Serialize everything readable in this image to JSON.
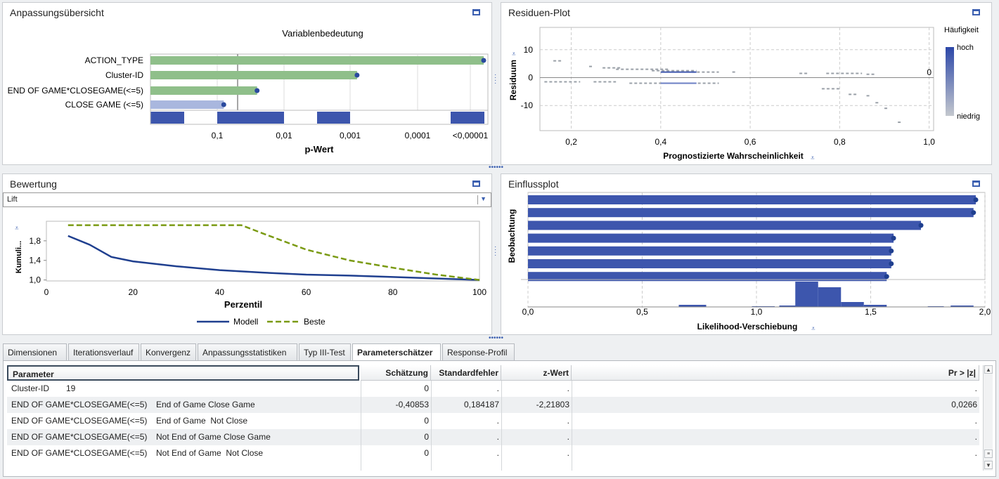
{
  "panels": {
    "fit_summary": {
      "title": "Anpassungsübersicht"
    },
    "residual": {
      "title": "Residuen-Plot"
    },
    "assessment": {
      "title": "Bewertung",
      "select_value": "Lift"
    },
    "influence": {
      "title": "Einflussplot"
    }
  },
  "chart_data": [
    {
      "type": "bar",
      "title": "Variablenbedeutung",
      "xlabel": "p-Wert",
      "x_scale": "log (reversed)",
      "categories": [
        "ACTION_TYPE",
        "Cluster-ID",
        "END OF GAME*CLOSEGAME(<=5)",
        "CLOSE GAME (<=5)"
      ],
      "x_ticks": [
        "0,1",
        "0,01",
        "0,001",
        "0,0001",
        "<0,00001"
      ],
      "values_log10_neg": [
        5.0,
        3.1,
        1.6,
        1.1
      ],
      "colors": [
        "#8fbf8a",
        "#8fbf8a",
        "#8fbf8a",
        "#a9b7de"
      ],
      "reference_line": 0.05
    },
    {
      "type": "scatter",
      "xlabel": "Prognostizierte Wahrscheinlichkeit",
      "ylabel": "Residuum",
      "x_ticks": [
        "0,2",
        "0,4",
        "0,6",
        "0,8",
        "1,0"
      ],
      "y_ticks": [
        "10",
        "0",
        "-10"
      ],
      "xlim": [
        0.13,
        1.01
      ],
      "ylim": [
        -19,
        18
      ],
      "legend": {
        "title": "Häufigkeit",
        "high": "hoch",
        "low": "niedrig"
      },
      "annotation": "0"
    },
    {
      "type": "line",
      "xlabel": "Perzentil",
      "ylabel": "Kumuli...",
      "x_ticks": [
        "0",
        "20",
        "40",
        "60",
        "80",
        "100"
      ],
      "y_ticks": [
        "1,8",
        "1,4",
        "1,0"
      ],
      "xlim": [
        0,
        100
      ],
      "ylim": [
        0.98,
        2.2
      ],
      "series": [
        {
          "name": "Modell",
          "x": [
            5,
            10,
            15,
            20,
            30,
            40,
            50,
            60,
            70,
            80,
            90,
            100
          ],
          "values": [
            1.9,
            1.72,
            1.47,
            1.38,
            1.28,
            1.2,
            1.15,
            1.11,
            1.09,
            1.06,
            1.03,
            1.0
          ]
        },
        {
          "name": "Beste",
          "x": [
            5,
            20,
            40,
            45,
            50,
            60,
            70,
            80,
            90,
            100
          ],
          "values": [
            2.12,
            2.12,
            2.12,
            2.12,
            1.95,
            1.62,
            1.4,
            1.25,
            1.11,
            1.0
          ]
        }
      ]
    },
    {
      "type": "bar",
      "xlabel": "Likelihood-Verschiebung",
      "ylabel": "Beobachtung",
      "x_ticks": [
        "0,0",
        "0,5",
        "1,0",
        "1,5",
        "2,0"
      ],
      "xlim": [
        0,
        2.0
      ],
      "values": [
        1.96,
        1.95,
        1.72,
        1.6,
        1.59,
        1.59,
        1.57
      ]
    }
  ],
  "tabs": [
    "Dimensionen",
    "Iterationsverlauf",
    "Konvergenz",
    "Anpassungsstatistiken",
    "Typ III-Test",
    "Parameterschätzer",
    "Response-Profil"
  ],
  "active_tab": "Parameterschätzer",
  "table": {
    "columns": [
      "Parameter",
      "Schätzung",
      "Standardfehler",
      "z-Wert",
      "Pr > |z|"
    ],
    "rows": [
      [
        "Cluster-ID",
        "19",
        "0",
        ".",
        ".",
        "."
      ],
      [
        "END OF GAME*CLOSEGAME(<=5)",
        "End of Game Close Game",
        "-0,40853",
        "0,184187",
        "-2,21803",
        "0,0266"
      ],
      [
        "END OF GAME*CLOSEGAME(<=5)",
        "End of Game  Not Close",
        "0",
        ".",
        ".",
        "."
      ],
      [
        "END OF GAME*CLOSEGAME(<=5)",
        "Not End of Game Close Game",
        "0",
        ".",
        ".",
        "."
      ],
      [
        "END OF GAME*CLOSEGAME(<=5)",
        "Not End of Game  Not Close",
        "0",
        ".",
        ".",
        "."
      ]
    ]
  }
}
